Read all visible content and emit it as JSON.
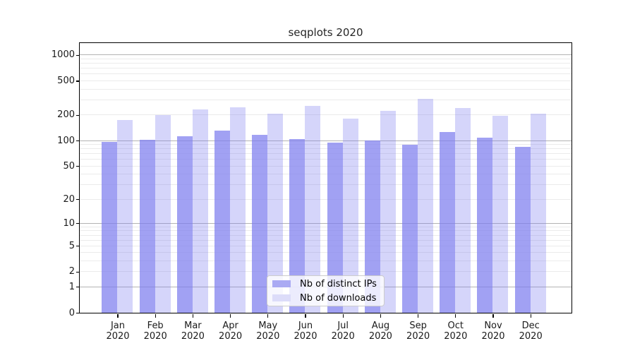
{
  "chart_data": {
    "type": "bar",
    "title": "seqplots 2020",
    "x": [
      "Jan 2020",
      "Feb 2020",
      "Mar 2020",
      "Apr 2020",
      "May 2020",
      "Jun 2020",
      "Jul 2020",
      "Aug 2020",
      "Sep 2020",
      "Oct 2020",
      "Nov 2020",
      "Dec 2020"
    ],
    "series": [
      {
        "name": "Nb of distinct IPs",
        "values": [
          96,
          103,
          112,
          130,
          116,
          105,
          95,
          100,
          90,
          126,
          108,
          85
        ]
      },
      {
        "name": "Nb of downloads",
        "values": [
          174,
          198,
          232,
          247,
          205,
          257,
          182,
          222,
          308,
          242,
          194,
          207
        ]
      }
    ],
    "y_scale": "log1p",
    "y_ticks": [
      0,
      1,
      2,
      5,
      10,
      20,
      50,
      100,
      200,
      500,
      1000
    ],
    "y_major_ticks": [
      1,
      10,
      100,
      1000
    ],
    "ylim": [
      0,
      1370
    ],
    "grid": "both",
    "legend_position": "lower-center"
  },
  "colors": {
    "ips_bar": "rgba(125,125,238,0.72)",
    "downloads_bar": "rgba(125,125,238,0.32)",
    "ips_swatch": "#aaaaf3",
    "downloads_swatch": "#dcdcf9",
    "grid_major": "#b3b3b3",
    "grid_minor": "#ebebeb",
    "axis": "#000000"
  }
}
